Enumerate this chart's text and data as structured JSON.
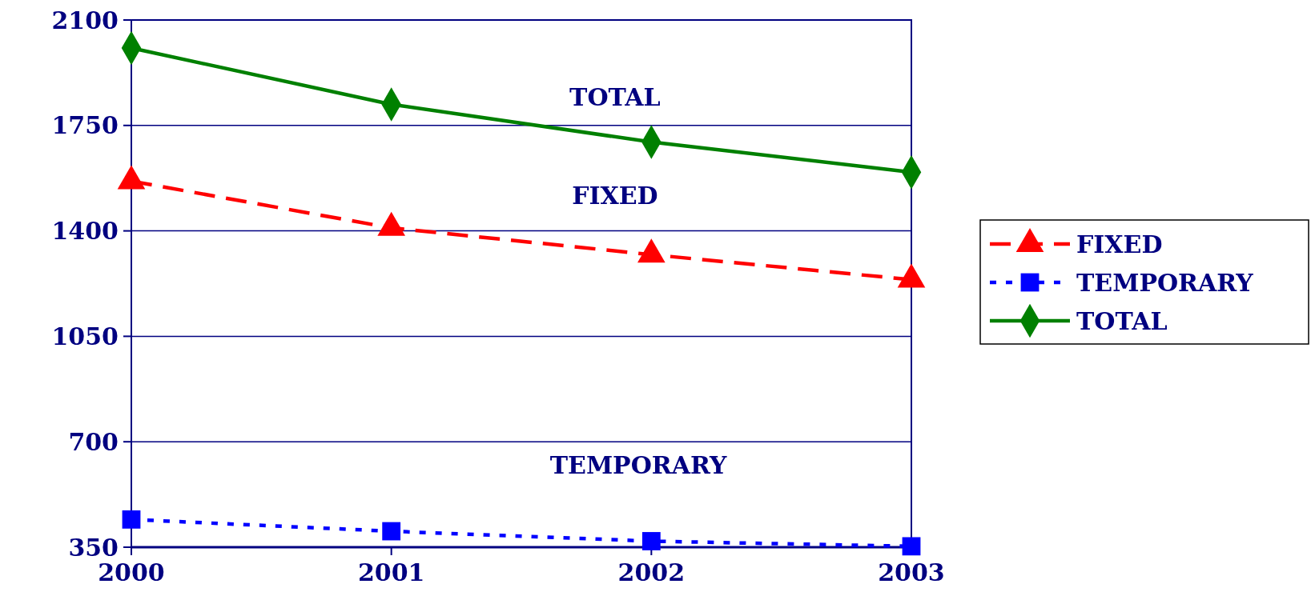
{
  "chart_data": {
    "type": "line",
    "categories": [
      "2000",
      "2001",
      "2002",
      "2003"
    ],
    "series": [
      {
        "name": "FIXED",
        "color": "#ff0000",
        "values": [
          1565,
          1410,
          1321,
          1238
        ],
        "line_style": "dashed",
        "marker": "triangle"
      },
      {
        "name": "TEMPORARY",
        "color": "#0000ff",
        "values": [
          442,
          403,
          370,
          353
        ],
        "line_style": "dotted",
        "marker": "square"
      },
      {
        "name": "TOTAL",
        "color": "#008000",
        "values": [
          2007,
          1820,
          1695,
          1595
        ],
        "line_style": "solid",
        "marker": "diamond"
      }
    ],
    "ylim": [
      350,
      2100
    ],
    "yticks": [
      350,
      700,
      1050,
      1400,
      1750,
      2100
    ],
    "grid": "y",
    "legend": "right",
    "annotations": [
      "TOTAL",
      "FIXED",
      "TEMPORARY"
    ]
  }
}
